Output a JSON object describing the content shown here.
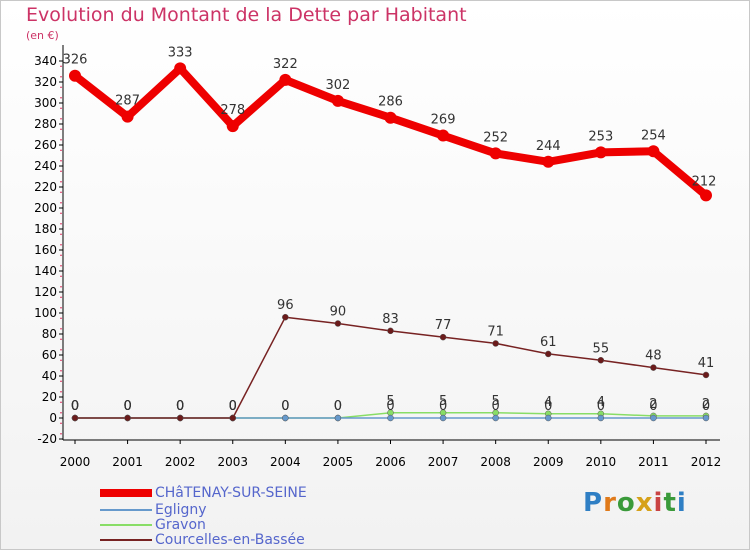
{
  "chart_data": {
    "type": "line",
    "title": "Evolution du Montant de la Dette par Habitant",
    "ylabel": "(en €)",
    "xlabel": "",
    "categories": [
      "2000",
      "2001",
      "2002",
      "2003",
      "2004",
      "2005",
      "2006",
      "2007",
      "2008",
      "2009",
      "2010",
      "2011",
      "2012"
    ],
    "ylim": [
      -20,
      340
    ],
    "yticks": [
      -20,
      0,
      20,
      40,
      60,
      80,
      100,
      120,
      140,
      160,
      180,
      200,
      220,
      240,
      260,
      280,
      300,
      320,
      340
    ],
    "legend_position": "bottom-left",
    "series": [
      {
        "name": "CHâTENAY-SUR-SEINE",
        "color": "#ee0000",
        "values": [
          326,
          287,
          333,
          278,
          322,
          302,
          286,
          269,
          252,
          244,
          253,
          254,
          212
        ],
        "labels": [
          "326",
          "287",
          "333",
          "278",
          "322",
          "302",
          "286",
          "269",
          "252",
          "244",
          "253",
          "254",
          "212"
        ]
      },
      {
        "name": "Egligny",
        "color": "#6699cc",
        "values": [
          0,
          0,
          0,
          0,
          0,
          0,
          0,
          0,
          0,
          0,
          0,
          0,
          0
        ],
        "labels": [
          "0",
          "0",
          "0",
          "0",
          "0",
          "0",
          "0",
          "0",
          "0",
          "0",
          "0",
          "0",
          "0"
        ]
      },
      {
        "name": "Gravon",
        "color": "#88dd66",
        "values": [
          0,
          0,
          0,
          0,
          0,
          0,
          5,
          5,
          5,
          4,
          4,
          2,
          2
        ],
        "labels": [
          "0",
          "0",
          "0",
          "0",
          "0",
          "0",
          "5",
          "5",
          "5",
          "4",
          "4",
          "2",
          "2"
        ]
      },
      {
        "name": "Courcelles-en-Bassée",
        "color": "#772222",
        "values": [
          0,
          0,
          0,
          0,
          96,
          90,
          83,
          77,
          71,
          61,
          55,
          48,
          41
        ],
        "labels": [
          "0",
          "0",
          "0",
          "0",
          "96",
          "90",
          "83",
          "77",
          "71",
          "61",
          "55",
          "48",
          "41"
        ]
      }
    ]
  },
  "logo": {
    "text": "Proxiti",
    "letters": [
      "P",
      "r",
      "o",
      "x",
      "i",
      "t",
      "i"
    ],
    "colors": [
      "#2f7fc4",
      "#e07a1a",
      "#3a9a3a",
      "#d6a11a",
      "#c94343",
      "#3a9a3a",
      "#2f7fc4"
    ]
  }
}
